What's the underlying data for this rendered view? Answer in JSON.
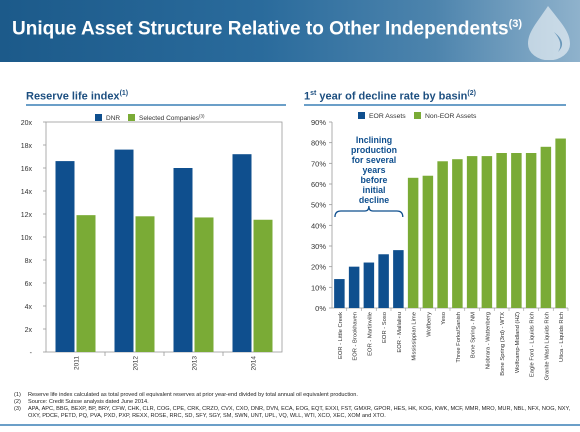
{
  "header": {
    "title": "Unique Asset Structure Relative to Other Independents",
    "title_ref": "(3)",
    "color": "#2a6b9c"
  },
  "left_panel": {
    "title": "Reserve life index",
    "title_ref": "(1)"
  },
  "right_panel": {
    "title_pre": "1",
    "title_sup_st": "st",
    "title_post": " year of decline rate by basin",
    "title_ref": "(2)"
  },
  "chart_data": [
    {
      "type": "bar",
      "categories": [
        "2011",
        "2012",
        "2013",
        "2014"
      ],
      "series": [
        {
          "name": "DNR",
          "color": "#0f4f8e",
          "values": [
            16.6,
            17.6,
            16.0,
            17.2
          ]
        },
        {
          "name": "Selected Companies",
          "name_ref": "(3)",
          "color": "#7aab36",
          "values": [
            11.9,
            11.8,
            11.7,
            11.5
          ]
        }
      ],
      "ylim": [
        0,
        20
      ],
      "yticks": [
        "-",
        "2x",
        "4x",
        "6x",
        "8x",
        "10x",
        "12x",
        "14x",
        "16x",
        "18x",
        "20x"
      ],
      "legend": "top",
      "grid": false
    },
    {
      "type": "bar",
      "categories": [
        "EOR - Little Creek",
        "EOR - Brookhaven",
        "EOR - Martinville",
        "EOR - Soso",
        "EOR - Mallalieu",
        "Mississippian Lime",
        "Wolfberry",
        "Yeso",
        "Three Forks/Sanish",
        "Bone Spring - NM",
        "Niobrara - Wattenberg",
        "Bone Spring (3rd) - WTX",
        "Wolfcamp-Midland (HZ)",
        "Eagle Ford - Liquids Rich",
        "Granite Wash Liquids Rich",
        "Utica - Liquids Rich"
      ],
      "values": [
        14,
        20,
        22,
        26,
        28,
        63,
        64,
        71,
        72,
        73.5,
        73.5,
        75,
        75,
        75,
        78,
        82
      ],
      "series": [
        {
          "name": "EOR Assets",
          "color": "#0f4f8e",
          "count": 5
        },
        {
          "name": "Non-EOR Assets",
          "color": "#7aab36",
          "count": 11
        }
      ],
      "ylim": [
        0,
        90
      ],
      "yticks": [
        "0%",
        "10%",
        "20%",
        "30%",
        "40%",
        "50%",
        "60%",
        "70%",
        "80%",
        "90%"
      ],
      "annotation": "Inclining\nproduction\nfor several\nyears\nbefore\ninitial\ndecline",
      "annotation_color": "#0f4f8e",
      "legend": "top",
      "grid": false
    }
  ],
  "footnotes": [
    {
      "num": "(1)",
      "text": "Reserve life index calculated as total proved oil equivalent reserves at prior year-end divided by total annual oil equivalent production."
    },
    {
      "num": "(2)",
      "text": "Source: Credit Suisse analysis dated June 2014."
    },
    {
      "num": "(3)",
      "text": "APA, APC, BBG, BEXP, BP, BRY, CFW, CHK, CLR, COG, CPE, CRK, CRZO, CVX, CXO, DNR, DVN, ECA, EOG, EQT, EXXI, FST, GMXR, GPOR, HES, HK, KOG, KWK, MCF, MMR, MRO, MUR, NBL, NFX, NOG, NXY, OXY, PDCE, PETD, PQ, PVA, PXD, PXP, REXX, ROSE, RRC, SD, SFY, SGY, SM, SWN, UNT, UPL, VQ, WLL, WTI, XCO, XEC, XOM and XTO."
    }
  ]
}
